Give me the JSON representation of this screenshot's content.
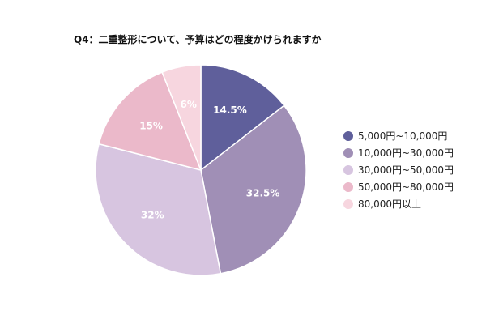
{
  "chart_data": {
    "type": "pie",
    "title": "Q4：二重整形について、予算はどの程度かけられますか",
    "categories": [
      "5,000円~10,000円",
      "10,000円~30,000円",
      "30,000円~50,000円",
      "50,000円~80,000円",
      "80,000円以上"
    ],
    "values": [
      14.5,
      32.5,
      32,
      15,
      6
    ],
    "data_labels": [
      "14.5%",
      "32.5%",
      "32%",
      "15%",
      "6%"
    ],
    "colors": [
      "#5f5f9b",
      "#a08fb6",
      "#d7c5e0",
      "#ebb9ca",
      "#f7d6df"
    ],
    "legend_position": "right",
    "start_angle": "12 o'clock",
    "direction": "clockwise"
  }
}
